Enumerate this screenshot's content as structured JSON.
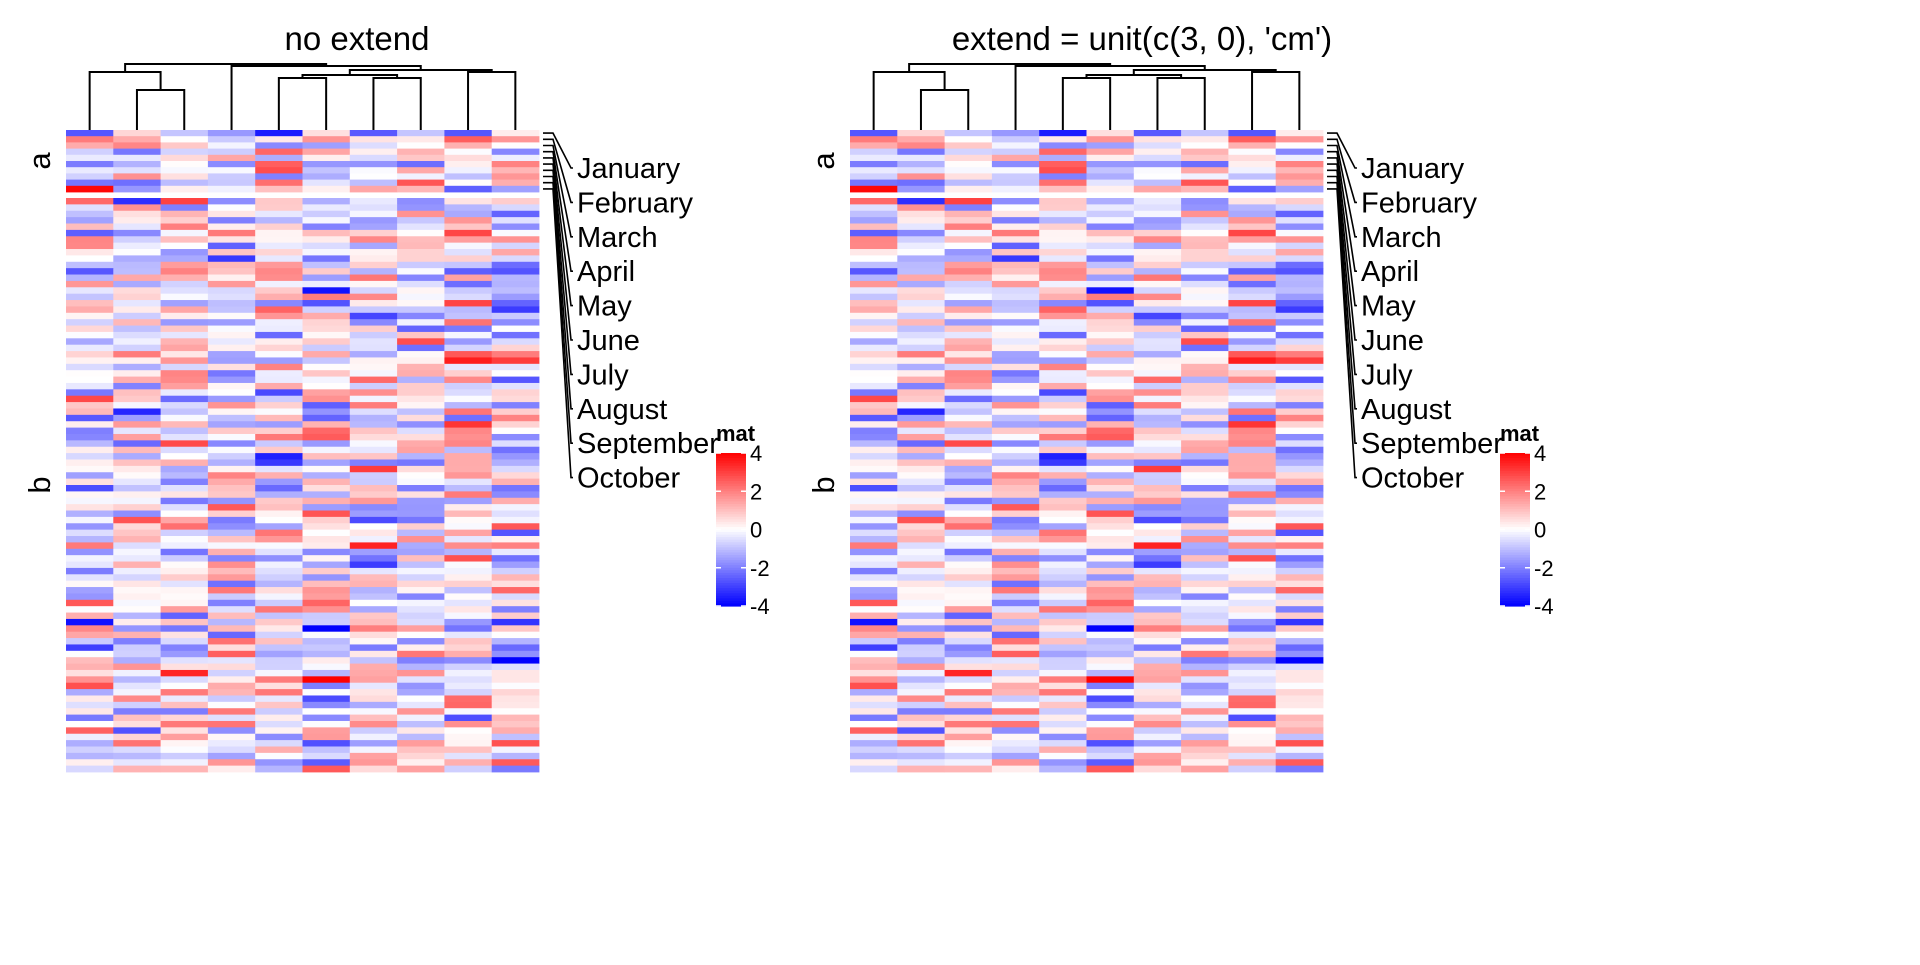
{
  "chart_data": [
    {
      "type": "heatmap",
      "title": "no extend",
      "n_rows": 100,
      "n_cols": 10,
      "row_splits": [
        {
          "label": "a",
          "rows": 10
        },
        {
          "label": "b",
          "rows": 90
        }
      ],
      "row_labels": [
        "January",
        "February",
        "March",
        "April",
        "May",
        "June",
        "July",
        "August",
        "September",
        "October"
      ],
      "row_label_anchor_rows": [
        0,
        1,
        2,
        3,
        4,
        5,
        6,
        7,
        8,
        9
      ],
      "column_dendrogram": true,
      "legend": {
        "title": "mat",
        "ticks": [
          4,
          2,
          0,
          -2,
          -4
        ],
        "colors": {
          "low": "#0000ff",
          "mid": "#ffffff",
          "high": "#ff0000"
        },
        "range": [
          -4,
          4
        ]
      },
      "value_range": [
        -4,
        4
      ],
      "seed": 4821
    },
    {
      "type": "heatmap",
      "title": "extend = unit(c(3, 0), 'cm')",
      "n_rows": 100,
      "n_cols": 10,
      "row_splits": [
        {
          "label": "a",
          "rows": 10
        },
        {
          "label": "b",
          "rows": 90
        }
      ],
      "row_labels": [
        "January",
        "February",
        "March",
        "April",
        "May",
        "June",
        "July",
        "August",
        "September",
        "October"
      ],
      "row_label_anchor_rows": [
        0,
        1,
        2,
        3,
        4,
        5,
        6,
        7,
        8,
        9
      ],
      "column_dendrogram": true,
      "legend": {
        "title": "mat",
        "ticks": [
          4,
          2,
          0,
          -2,
          -4
        ],
        "colors": {
          "low": "#0000ff",
          "mid": "#ffffff",
          "high": "#ff0000"
        },
        "range": [
          -4,
          4
        ]
      },
      "value_range": [
        -4,
        4
      ],
      "seed": 4821
    }
  ]
}
